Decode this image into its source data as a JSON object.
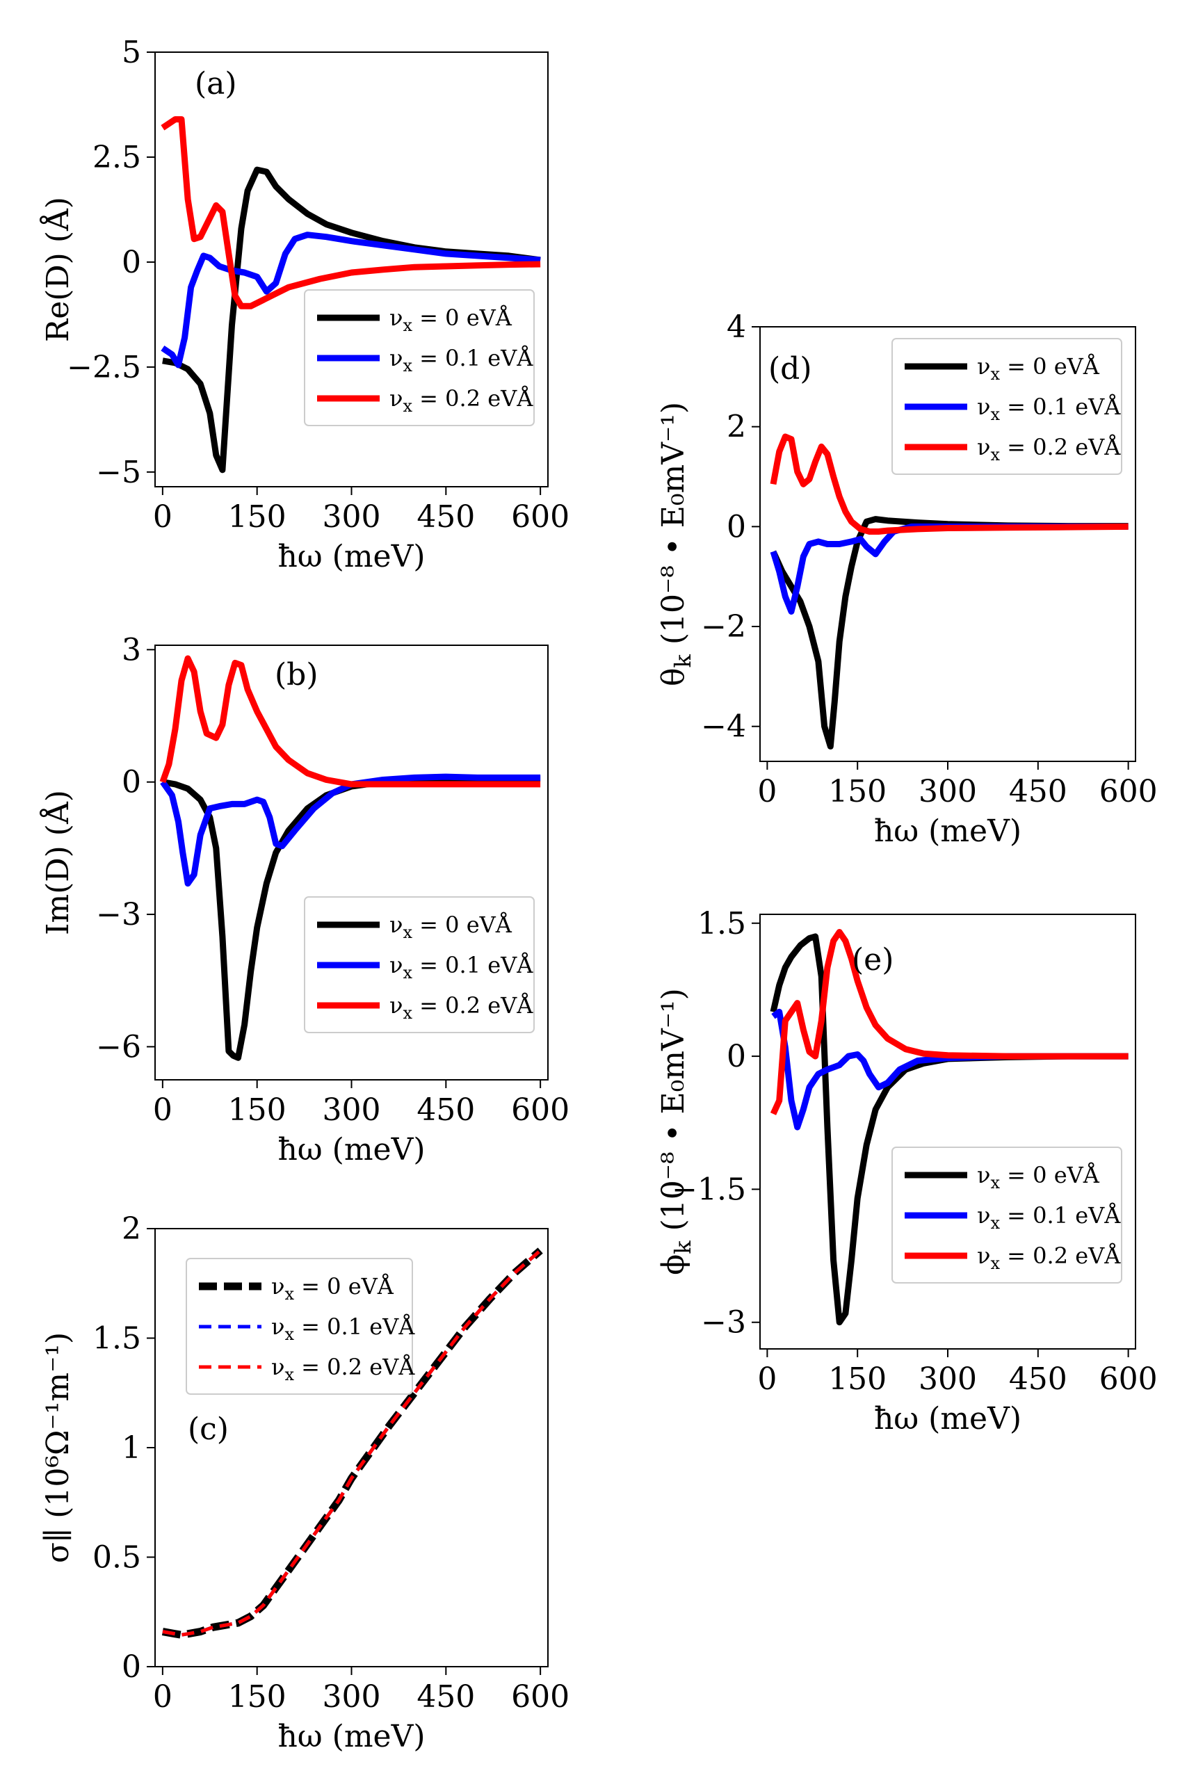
{
  "legend_labels": [
    "ν_x = 0 eVÅ",
    "ν_x = 0.1 eVÅ",
    "ν_x = 0.2 eVÅ"
  ],
  "colors": {
    "black": "#000000",
    "blue": "#0000ff",
    "red": "#ff0000"
  },
  "chart_data": [
    {
      "id": "a",
      "type": "line",
      "panel_label": "(a)",
      "xlabel": "ħω (meV)",
      "ylabel": "Re(D) (Å)",
      "xlim": [
        -12,
        612
      ],
      "ylim": [
        -5.35,
        5
      ],
      "xticks": [
        0,
        150,
        300,
        450,
        600
      ],
      "xtick_labels": [
        "0",
        "150",
        "300",
        "450",
        "600"
      ],
      "yticks": [
        -5,
        -2.5,
        0,
        2.5,
        5
      ],
      "ytick_labels": [
        "−5",
        "−2.5",
        "0",
        "2.5",
        "5"
      ],
      "legend_position": "middle-right",
      "series": [
        {
          "name": "ν_x = 0 eVÅ",
          "color": "#000000",
          "dash": "solid",
          "x": [
            0,
            20,
            40,
            60,
            75,
            85,
            95,
            100,
            110,
            125,
            135,
            150,
            165,
            180,
            200,
            230,
            260,
            300,
            350,
            400,
            450,
            500,
            550,
            600
          ],
          "y": [
            -2.35,
            -2.4,
            -2.55,
            -2.9,
            -3.6,
            -4.6,
            -4.95,
            -3.8,
            -1.5,
            0.8,
            1.7,
            2.2,
            2.15,
            1.8,
            1.5,
            1.15,
            0.9,
            0.7,
            0.5,
            0.35,
            0.25,
            0.2,
            0.15,
            0.05
          ]
        },
        {
          "name": "ν_x = 0.1 eVÅ",
          "color": "#0000ff",
          "dash": "solid",
          "x": [
            0,
            15,
            25,
            35,
            45,
            55,
            65,
            75,
            90,
            110,
            130,
            150,
            165,
            180,
            195,
            210,
            230,
            260,
            300,
            350,
            400,
            450,
            500,
            550,
            600
          ],
          "y": [
            -2.05,
            -2.2,
            -2.45,
            -1.8,
            -0.6,
            -0.2,
            0.15,
            0.1,
            -0.1,
            -0.2,
            -0.25,
            -0.35,
            -0.7,
            -0.5,
            0.2,
            0.55,
            0.65,
            0.6,
            0.5,
            0.4,
            0.3,
            0.2,
            0.15,
            0.1,
            0.05
          ]
        },
        {
          "name": "ν_x = 0.2 eVÅ",
          "color": "#ff0000",
          "dash": "solid",
          "x": [
            0,
            10,
            20,
            30,
            40,
            50,
            60,
            75,
            85,
            95,
            105,
            115,
            125,
            140,
            160,
            180,
            200,
            250,
            300,
            350,
            400,
            450,
            500,
            550,
            600
          ],
          "y": [
            3.2,
            3.3,
            3.4,
            3.4,
            1.5,
            0.55,
            0.6,
            1.05,
            1.35,
            1.2,
            0.2,
            -0.8,
            -1.05,
            -1.05,
            -0.9,
            -0.75,
            -0.6,
            -0.4,
            -0.25,
            -0.18,
            -0.12,
            -0.1,
            -0.08,
            -0.06,
            -0.05
          ]
        }
      ]
    },
    {
      "id": "b",
      "type": "line",
      "panel_label": "(b)",
      "xlabel": "ħω (meV)",
      "ylabel": "Im(D) (Å)",
      "xlim": [
        -12,
        612
      ],
      "ylim": [
        -6.75,
        3.1
      ],
      "xticks": [
        0,
        150,
        300,
        450,
        600
      ],
      "xtick_labels": [
        "0",
        "150",
        "300",
        "450",
        "600"
      ],
      "yticks": [
        -6,
        -3,
        0,
        3
      ],
      "ytick_labels": [
        "−6",
        "−3",
        "0",
        "3"
      ],
      "legend_position": "lower-right",
      "series": [
        {
          "name": "ν_x = 0 eVÅ",
          "color": "#000000",
          "dash": "solid",
          "x": [
            0,
            20,
            40,
            60,
            75,
            85,
            95,
            105,
            112,
            120,
            130,
            140,
            150,
            165,
            180,
            200,
            230,
            260,
            300,
            350,
            400,
            450,
            500,
            550,
            600
          ],
          "y": [
            0,
            -0.05,
            -0.15,
            -0.4,
            -0.8,
            -1.5,
            -3.5,
            -6.1,
            -6.2,
            -6.25,
            -5.5,
            -4.3,
            -3.3,
            -2.3,
            -1.6,
            -1.1,
            -0.6,
            -0.3,
            -0.1,
            0,
            0.05,
            0.05,
            0.08,
            0.08,
            0.08
          ]
        },
        {
          "name": "ν_x = 0.1 eVÅ",
          "color": "#0000ff",
          "dash": "solid",
          "x": [
            0,
            15,
            25,
            32,
            40,
            50,
            60,
            75,
            90,
            110,
            130,
            140,
            150,
            160,
            170,
            180,
            190,
            210,
            240,
            270,
            300,
            350,
            400,
            450,
            500,
            550,
            600
          ],
          "y": [
            0,
            -0.3,
            -0.9,
            -1.6,
            -2.3,
            -2.1,
            -1.2,
            -0.6,
            -0.55,
            -0.5,
            -0.5,
            -0.45,
            -0.4,
            -0.45,
            -0.8,
            -1.4,
            -1.45,
            -1.1,
            -0.6,
            -0.25,
            -0.05,
            0.05,
            0.1,
            0.12,
            0.1,
            0.1,
            0.1
          ]
        },
        {
          "name": "ν_x = 0.2 eVÅ",
          "color": "#ff0000",
          "dash": "solid",
          "x": [
            0,
            10,
            20,
            30,
            40,
            50,
            60,
            70,
            85,
            95,
            105,
            115,
            125,
            135,
            150,
            165,
            180,
            200,
            230,
            260,
            300,
            350,
            400,
            450,
            500,
            550,
            600
          ],
          "y": [
            0,
            0.4,
            1.2,
            2.3,
            2.8,
            2.5,
            1.6,
            1.1,
            1.0,
            1.3,
            2.2,
            2.7,
            2.65,
            2.1,
            1.6,
            1.2,
            0.8,
            0.5,
            0.2,
            0.05,
            -0.05,
            -0.05,
            -0.05,
            -0.05,
            -0.05,
            -0.05,
            -0.05
          ]
        }
      ]
    },
    {
      "id": "c",
      "type": "line",
      "panel_label": "(c)",
      "xlabel": "ħω (meV)",
      "ylabel": "σ∥ (10⁶Ω⁻¹m⁻¹)",
      "xlim": [
        -12,
        612
      ],
      "ylim": [
        0,
        2
      ],
      "xticks": [
        0,
        150,
        300,
        450,
        600
      ],
      "xtick_labels": [
        "0",
        "150",
        "300",
        "450",
        "600"
      ],
      "yticks": [
        0,
        0.5,
        1,
        1.5,
        2
      ],
      "ytick_labels": [
        "0",
        "0.5",
        "1",
        "1.5",
        "2"
      ],
      "legend_position": "upper-left",
      "series": [
        {
          "name": "ν_x = 0 eVÅ",
          "color": "#000000",
          "dash": "bold-dash",
          "x": [
            0,
            10,
            20,
            30,
            40,
            50,
            60,
            80,
            100,
            120,
            140,
            160,
            180,
            200,
            220,
            250,
            280,
            300,
            330,
            360,
            400,
            440,
            480,
            520,
            560,
            600
          ],
          "y": [
            0.16,
            0.155,
            0.15,
            0.145,
            0.15,
            0.155,
            0.16,
            0.18,
            0.19,
            0.2,
            0.23,
            0.28,
            0.36,
            0.44,
            0.52,
            0.64,
            0.76,
            0.86,
            0.98,
            1.1,
            1.25,
            1.4,
            1.55,
            1.68,
            1.8,
            1.9
          ]
        },
        {
          "name": "ν_x = 0.1 eVÅ",
          "color": "#0000ff",
          "dash": "dashed",
          "x": [
            0,
            10,
            20,
            30,
            40,
            50,
            60,
            80,
            100,
            120,
            140,
            160,
            180,
            200,
            220,
            250,
            280,
            300,
            330,
            360,
            400,
            440,
            480,
            520,
            560,
            600
          ],
          "y": [
            0.16,
            0.155,
            0.15,
            0.145,
            0.15,
            0.155,
            0.16,
            0.18,
            0.19,
            0.2,
            0.23,
            0.28,
            0.36,
            0.44,
            0.52,
            0.64,
            0.76,
            0.86,
            0.98,
            1.1,
            1.25,
            1.4,
            1.55,
            1.68,
            1.8,
            1.9
          ]
        },
        {
          "name": "ν_x = 0.2 eVÅ",
          "color": "#ff0000",
          "dash": "dashed",
          "x": [
            0,
            10,
            20,
            30,
            40,
            50,
            60,
            80,
            100,
            120,
            140,
            160,
            180,
            200,
            220,
            250,
            280,
            300,
            330,
            360,
            400,
            440,
            480,
            520,
            560,
            600
          ],
          "y": [
            0.16,
            0.155,
            0.15,
            0.145,
            0.15,
            0.155,
            0.16,
            0.18,
            0.19,
            0.2,
            0.23,
            0.28,
            0.36,
            0.44,
            0.52,
            0.64,
            0.76,
            0.86,
            0.98,
            1.1,
            1.25,
            1.4,
            1.55,
            1.68,
            1.8,
            1.9
          ]
        }
      ]
    },
    {
      "id": "d",
      "type": "line",
      "panel_label": "(d)",
      "xlabel": "ħω (meV)",
      "ylabel": "θ_k (10⁻⁸ • E₀mV⁻¹)",
      "xlim": [
        -12,
        612
      ],
      "ylim": [
        -4.7,
        4
      ],
      "xticks": [
        0,
        150,
        300,
        450,
        600
      ],
      "xtick_labels": [
        "0",
        "150",
        "300",
        "450",
        "600"
      ],
      "yticks": [
        -4,
        -2,
        0,
        2,
        4
      ],
      "ytick_labels": [
        "−4",
        "−2",
        "0",
        "2",
        "4"
      ],
      "legend_position": "upper-right",
      "series": [
        {
          "name": "ν_x = 0 eVÅ",
          "color": "#000000",
          "dash": "solid",
          "x": [
            10,
            25,
            40,
            55,
            70,
            85,
            95,
            105,
            112,
            120,
            130,
            140,
            150,
            165,
            180,
            200,
            250,
            300,
            400,
            500,
            600
          ],
          "y": [
            -0.5,
            -0.9,
            -1.2,
            -1.5,
            -2.0,
            -2.7,
            -4.0,
            -4.4,
            -3.5,
            -2.3,
            -1.4,
            -0.8,
            -0.3,
            0.1,
            0.15,
            0.12,
            0.08,
            0.05,
            0.02,
            0.01,
            0.01
          ]
        },
        {
          "name": "ν_x = 0.1 eVÅ",
          "color": "#0000ff",
          "dash": "solid",
          "x": [
            10,
            20,
            30,
            40,
            50,
            60,
            70,
            85,
            100,
            120,
            140,
            155,
            165,
            180,
            195,
            210,
            240,
            300,
            400,
            500,
            600
          ],
          "y": [
            -0.5,
            -0.9,
            -1.4,
            -1.7,
            -1.2,
            -0.6,
            -0.35,
            -0.3,
            -0.35,
            -0.35,
            -0.3,
            -0.25,
            -0.4,
            -0.55,
            -0.3,
            -0.1,
            0,
            0,
            0,
            0,
            0
          ]
        },
        {
          "name": "ν_x = 0.2 eVÅ",
          "color": "#ff0000",
          "dash": "solid",
          "x": [
            10,
            20,
            30,
            40,
            50,
            60,
            70,
            80,
            90,
            100,
            110,
            120,
            130,
            140,
            155,
            170,
            185,
            200,
            250,
            300,
            400,
            500,
            600
          ],
          "y": [
            0.85,
            1.5,
            1.8,
            1.75,
            1.1,
            0.85,
            0.95,
            1.3,
            1.6,
            1.45,
            1.0,
            0.6,
            0.3,
            0.1,
            -0.05,
            -0.1,
            -0.1,
            -0.08,
            -0.05,
            -0.03,
            -0.02,
            -0.01,
            0
          ]
        }
      ]
    },
    {
      "id": "e",
      "type": "line",
      "panel_label": "(e)",
      "xlabel": "ħω (meV)",
      "ylabel": "ϕ_k (10⁻⁸ • E₀mV⁻¹)",
      "xlim": [
        -12,
        612
      ],
      "ylim": [
        -3.3,
        1.6
      ],
      "xticks": [
        0,
        150,
        300,
        450,
        600
      ],
      "xtick_labels": [
        "0",
        "150",
        "300",
        "450",
        "600"
      ],
      "yticks": [
        -3,
        -1.5,
        0,
        1.5
      ],
      "ytick_labels": [
        "−3",
        "−1.5",
        "0",
        "1.5"
      ],
      "legend_position": "lower-right",
      "series": [
        {
          "name": "ν_x = 0 eVÅ",
          "color": "#000000",
          "dash": "solid",
          "x": [
            10,
            20,
            30,
            40,
            55,
            70,
            80,
            90,
            100,
            110,
            120,
            130,
            140,
            150,
            165,
            180,
            200,
            230,
            260,
            300,
            400,
            500,
            600
          ],
          "y": [
            0.5,
            0.8,
            1.0,
            1.12,
            1.25,
            1.33,
            1.35,
            0.9,
            -0.8,
            -2.3,
            -3.0,
            -2.9,
            -2.3,
            -1.6,
            -1.0,
            -0.6,
            -0.35,
            -0.15,
            -0.08,
            -0.03,
            -0.01,
            0,
            0
          ]
        },
        {
          "name": "ν_x = 0.1 eVÅ",
          "color": "#0000ff",
          "dash": "solid",
          "x": [
            10,
            20,
            30,
            40,
            50,
            60,
            70,
            85,
            100,
            120,
            135,
            150,
            160,
            170,
            185,
            200,
            220,
            250,
            300,
            400,
            500,
            600
          ],
          "y": [
            0.45,
            0.5,
            0.1,
            -0.5,
            -0.8,
            -0.6,
            -0.35,
            -0.2,
            -0.15,
            -0.1,
            0,
            0.02,
            -0.05,
            -0.2,
            -0.35,
            -0.3,
            -0.15,
            -0.05,
            -0.02,
            0,
            0,
            0
          ]
        },
        {
          "name": "ν_x = 0.2 eVÅ",
          "color": "#ff0000",
          "dash": "solid",
          "x": [
            10,
            20,
            30,
            40,
            50,
            60,
            70,
            80,
            90,
            100,
            110,
            120,
            130,
            140,
            150,
            165,
            180,
            200,
            230,
            260,
            300,
            400,
            500,
            600
          ],
          "y": [
            -0.65,
            -0.5,
            0.4,
            0.5,
            0.6,
            0.3,
            0.05,
            0.0,
            0.4,
            1.0,
            1.3,
            1.4,
            1.3,
            1.1,
            0.85,
            0.55,
            0.35,
            0.2,
            0.08,
            0.03,
            0.01,
            0,
            0,
            0
          ]
        }
      ]
    }
  ]
}
